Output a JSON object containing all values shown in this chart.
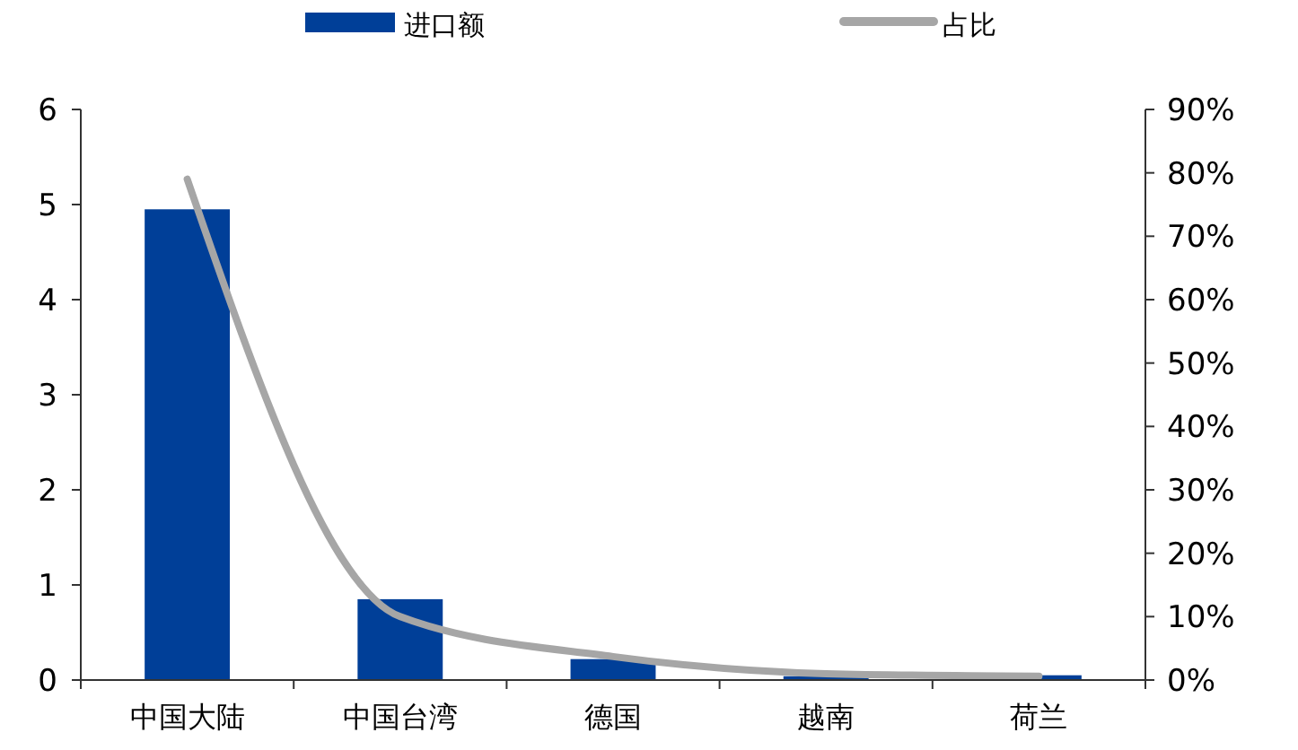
{
  "chart_data": {
    "type": "bar",
    "categories": [
      "中国大陆",
      "中国台湾",
      "德国",
      "越南",
      "荷兰"
    ],
    "series": [
      {
        "name": "进口额",
        "color": "#003f98",
        "values": [
          4.95,
          0.85,
          0.22,
          0.04,
          0.05
        ]
      },
      {
        "name": "占比",
        "type": "line",
        "axis": "y2",
        "color": "#a6a6a6",
        "values": [
          79,
          10,
          3.7,
          1,
          0.6
        ]
      }
    ],
    "ylim": [
      0,
      6
    ],
    "yticks": [
      0,
      1,
      2,
      3,
      4,
      5,
      6
    ],
    "y2lim": [
      0,
      90
    ],
    "y2ticks": [
      {
        "value": 0,
        "label": "0%"
      },
      {
        "value": 10,
        "label": "10%"
      },
      {
        "value": 20,
        "label": "20%"
      },
      {
        "value": 30,
        "label": "30%"
      },
      {
        "value": 40,
        "label": "40%"
      },
      {
        "value": 50,
        "label": "50%"
      },
      {
        "value": 60,
        "label": "60%"
      },
      {
        "value": 70,
        "label": "70%"
      },
      {
        "value": 80,
        "label": "80%"
      },
      {
        "value": 90,
        "label": "90%"
      }
    ],
    "legend": "top",
    "grid": false,
    "marker": "none",
    "line_style": "solid"
  }
}
